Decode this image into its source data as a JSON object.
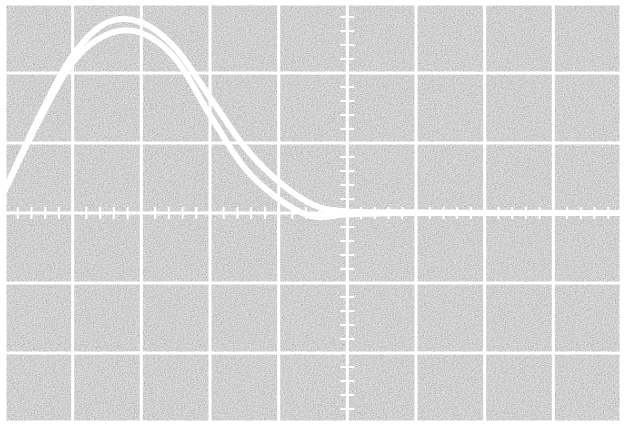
{
  "scope": {
    "grid": {
      "columns": 9,
      "rows": 6
    },
    "minor_ticks_per_division": 5,
    "colors": {
      "screen": "#3a3a3a",
      "screen_light": "#9a9a9a",
      "grid_line": "#ffffff",
      "trace": "#ffffff",
      "border": "#ffffff"
    },
    "traces": [
      {
        "name": "",
        "description_points_div": [
          [
            0.0,
            0.3
          ],
          [
            0.5,
            1.35
          ],
          [
            1.0,
            2.25
          ],
          [
            1.5,
            2.72
          ],
          [
            2.0,
            2.72
          ],
          [
            2.5,
            2.35
          ],
          [
            3.0,
            1.65
          ],
          [
            3.5,
            0.95
          ],
          [
            4.0,
            0.45
          ],
          [
            4.5,
            0.12
          ],
          [
            5.0,
            0.02
          ],
          [
            6.0,
            0.01
          ],
          [
            7.0,
            0.0
          ],
          [
            9.0,
            0.0
          ]
        ]
      },
      {
        "name": "",
        "description_points_div": [
          [
            0.0,
            0.3
          ],
          [
            0.5,
            1.3
          ],
          [
            1.0,
            2.15
          ],
          [
            1.5,
            2.55
          ],
          [
            2.0,
            2.57
          ],
          [
            2.5,
            2.2
          ],
          [
            3.0,
            1.4
          ],
          [
            3.5,
            0.65
          ],
          [
            4.0,
            0.2
          ],
          [
            4.5,
            -0.05
          ],
          [
            5.0,
            -0.02
          ],
          [
            6.0,
            0.0
          ],
          [
            9.0,
            0.0
          ]
        ]
      }
    ]
  }
}
